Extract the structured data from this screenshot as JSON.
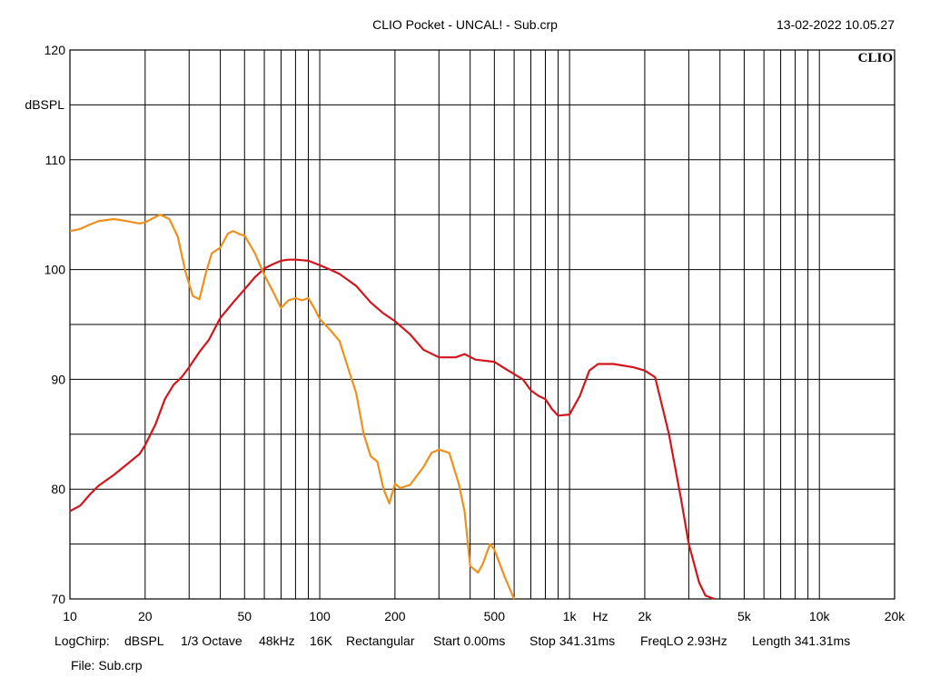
{
  "header": {
    "title": "CLIO Pocket - UNCAL! - Sub.crp",
    "timestamp": "13-02-2022 10.05.27",
    "logo": "CLIO"
  },
  "chart_data": {
    "type": "line",
    "xscale": "log",
    "xlim": [
      10,
      20000
    ],
    "ylim": [
      70,
      120
    ],
    "ylabel": "dBSPL",
    "xlabel": "Hz",
    "grid": true,
    "yticks": [
      "120",
      "110",
      "100",
      "90",
      "80",
      "70"
    ],
    "ytick_values": [
      120,
      110,
      100,
      90,
      80,
      70
    ],
    "xticks": [
      "10",
      "20",
      "50",
      "100",
      "200",
      "500",
      "1k",
      "2k",
      "5k",
      "10k",
      "20k"
    ],
    "xtick_values": [
      10,
      20,
      50,
      100,
      200,
      500,
      1000,
      2000,
      5000,
      10000,
      20000
    ],
    "series": [
      {
        "color": "#d4141c",
        "x": [
          10,
          11,
          12,
          13,
          15,
          17,
          19,
          20,
          22,
          24,
          26,
          28,
          30,
          33,
          36,
          40,
          45,
          50,
          55,
          60,
          65,
          70,
          75,
          80,
          90,
          100,
          110,
          120,
          140,
          160,
          180,
          200,
          230,
          260,
          300,
          350,
          380,
          420,
          500,
          550,
          650,
          700,
          750,
          800,
          850,
          900,
          1000,
          1100,
          1200,
          1300,
          1500,
          1800,
          2000,
          2200,
          2500,
          2800,
          3000,
          3300,
          3500,
          3800
        ],
        "y": [
          78,
          78.5,
          79.5,
          80.3,
          81.3,
          82.3,
          83.2,
          84,
          85.9,
          88.2,
          89.5,
          90.2,
          91.1,
          92.5,
          93.6,
          95.6,
          97,
          98.2,
          99.3,
          100.1,
          100.5,
          100.8,
          100.9,
          100.9,
          100.8,
          100.4,
          100,
          99.6,
          98.5,
          97,
          96,
          95.3,
          94.1,
          92.7,
          92,
          92,
          92.3,
          91.8,
          91.6,
          91,
          90,
          89,
          88.5,
          88.2,
          87.3,
          86.7,
          86.8,
          88.5,
          90.8,
          91.4,
          91.4,
          91.1,
          90.8,
          90.2,
          85,
          79,
          75,
          71.5,
          70.3,
          70
        ]
      },
      {
        "color": "#f0901c",
        "x": [
          10,
          11,
          12,
          13,
          15,
          17,
          19,
          20,
          22,
          23,
          25,
          27,
          29,
          31,
          33,
          35,
          37,
          40,
          43,
          45,
          48,
          50,
          55,
          60,
          65,
          70,
          75,
          80,
          85,
          90,
          95,
          100,
          110,
          120,
          130,
          140,
          150,
          160,
          170,
          180,
          190,
          200,
          210,
          230,
          260,
          280,
          300,
          330,
          360,
          380,
          400,
          430,
          450,
          480,
          500,
          550,
          600
        ],
        "y": [
          103.5,
          103.7,
          104.1,
          104.4,
          104.6,
          104.4,
          104.2,
          104.3,
          104.8,
          105,
          104.6,
          103,
          99.8,
          97.6,
          97.3,
          99.7,
          101.5,
          102,
          103.3,
          103.5,
          103.2,
          103.1,
          101.5,
          99.5,
          98,
          96.5,
          97.2,
          97.4,
          97.2,
          97.4,
          96.5,
          95.5,
          94.5,
          93.5,
          91,
          88.7,
          85,
          83,
          82.5,
          80,
          78.7,
          80.5,
          80.1,
          80.4,
          82,
          83.3,
          83.6,
          83.3,
          80.5,
          78,
          73,
          72.4,
          73.2,
          75,
          74.5,
          72,
          70
        ]
      }
    ]
  },
  "footer": {
    "line1": [
      "LogChirp:",
      "dBSPL",
      "1/3 Octave",
      "48kHz",
      "16K",
      "Rectangular",
      "Start 0.00ms",
      "Stop 341.31ms",
      "FreqLO 2.93Hz",
      "Length 341.31ms"
    ],
    "file": "File: Sub.crp"
  }
}
